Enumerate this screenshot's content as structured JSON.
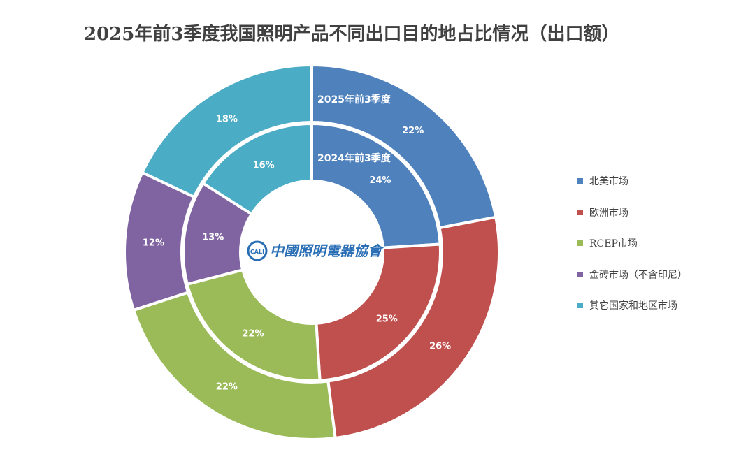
{
  "title": "2025年前3季度我国照明产品不同出口目的地占比情况（出口额）",
  "logo": {
    "text": "中國照明電器協會",
    "mark": "CALI"
  },
  "chart_data": {
    "type": "donut",
    "categories": [
      "北美市场",
      "欧洲市场",
      "RCEP市场",
      "金砖市场（不含印尼）",
      "其它国家和地区市场"
    ],
    "colors": [
      "#4f81bd",
      "#c0504d",
      "#9bbb59",
      "#8064a2",
      "#4bacc6"
    ],
    "series": [
      {
        "name": "2025年前3季度",
        "ring": "outer",
        "values": [
          22,
          26,
          22,
          12,
          18
        ],
        "labels": [
          "22%",
          "26%",
          "22%",
          "12%",
          "18%"
        ]
      },
      {
        "name": "2024年前3季度",
        "ring": "inner",
        "values": [
          24,
          25,
          22,
          13,
          16
        ],
        "labels": [
          "24%",
          "25%",
          "22%",
          "13%",
          "16%"
        ]
      }
    ],
    "legend_position": "right"
  }
}
